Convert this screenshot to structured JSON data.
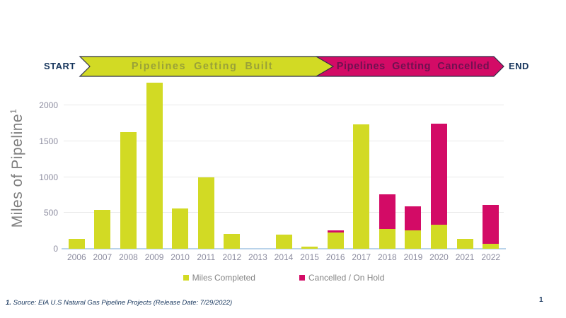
{
  "banner": {
    "start": "START",
    "built": "Pipelines  Getting  Built",
    "cancelled": "Pipelines  Getting  Cancelled",
    "end": "END",
    "built_color": "#d2da24",
    "cancelled_color": "#d30b66",
    "outline_color": "#2f3149"
  },
  "chart_data": {
    "type": "bar",
    "stacked": true,
    "title": "",
    "xlabel": "",
    "ylabel": "Miles of Pipeline",
    "ylabel_footnote_marker": "1",
    "categories": [
      "2006",
      "2007",
      "2008",
      "2009",
      "2010",
      "2011",
      "2012",
      "2013",
      "2014",
      "2015",
      "2016",
      "2017",
      "2018",
      "2019",
      "2020",
      "2021",
      "2022"
    ],
    "series": [
      {
        "name": "Miles Completed",
        "color": "#d2da24",
        "values": [
          140,
          540,
          1630,
          2320,
          560,
          1000,
          210,
          0,
          200,
          30,
          225,
          1740,
          280,
          260,
          340,
          140,
          70
        ]
      },
      {
        "name": "Cancelled / On Hold",
        "color": "#d30b66",
        "values": [
          0,
          0,
          0,
          0,
          0,
          0,
          0,
          0,
          0,
          0,
          30,
          0,
          480,
          330,
          1410,
          0,
          545
        ]
      }
    ],
    "yticks": [
      0,
      500,
      1000,
      1500,
      2000
    ],
    "ylim": [
      0,
      2360
    ],
    "grid": "horizontal",
    "legend_position": "bottom"
  },
  "legend": {
    "completed_label": "Miles Completed",
    "cancelled_label": "Cancelled / On Hold"
  },
  "footnote": {
    "marker": "1.",
    "text": " Source: EIA U.S Natural Gas Pipeline Projects (Release Date: 7/29/2022)"
  },
  "page_number": "1"
}
